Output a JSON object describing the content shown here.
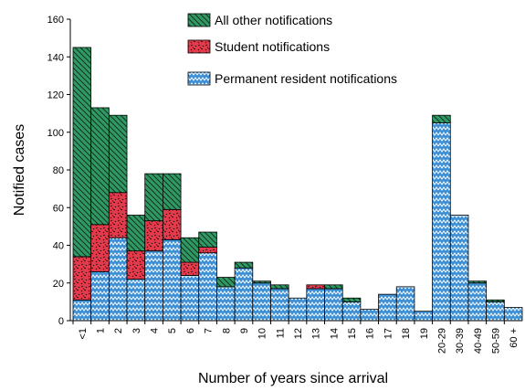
{
  "colors": {
    "permanent": "#3d8fd6",
    "student": "#e33b4b",
    "other": "#2f9a64"
  },
  "chart_data": {
    "type": "bar",
    "stacked": true,
    "categories": [
      "<1",
      "1",
      "2",
      "3",
      "4",
      "5",
      "6",
      "7",
      "8",
      "9",
      "10",
      "11",
      "12",
      "13",
      "14",
      "15",
      "16",
      "17",
      "18",
      "19",
      "20-29",
      "30-39",
      "40-49",
      "50-59",
      "60 +"
    ],
    "series": [
      {
        "name": "Permanent resident notifications",
        "values": [
          11,
          26,
          44,
          22,
          37,
          43,
          24,
          36,
          18,
          28,
          20,
          17,
          12,
          17,
          17,
          10,
          6,
          14,
          18,
          5,
          105,
          56,
          20,
          10,
          7
        ]
      },
      {
        "name": "Student notifications",
        "values": [
          23,
          25,
          24,
          15,
          16,
          16,
          7,
          3,
          0,
          0,
          0,
          0,
          0,
          2,
          0,
          0,
          0,
          0,
          0,
          0,
          0,
          0,
          0,
          0,
          0
        ]
      },
      {
        "name": "All other notifications",
        "values": [
          111,
          62,
          41,
          19,
          25,
          19,
          13,
          8,
          5,
          3,
          1,
          2,
          0,
          0,
          2,
          2,
          0,
          0,
          0,
          0,
          4,
          0,
          1,
          1,
          0
        ]
      }
    ],
    "xlabel": "Number of years since arrival",
    "ylabel": "Notified cases",
    "ylim": [
      0,
      160
    ],
    "yticks": [
      0,
      20,
      40,
      60,
      80,
      100,
      120,
      140,
      160
    ],
    "grid": false,
    "legend": {
      "position": "top-center",
      "order": [
        "All other notifications",
        "Student notifications",
        "Permanent resident notifications"
      ]
    }
  }
}
